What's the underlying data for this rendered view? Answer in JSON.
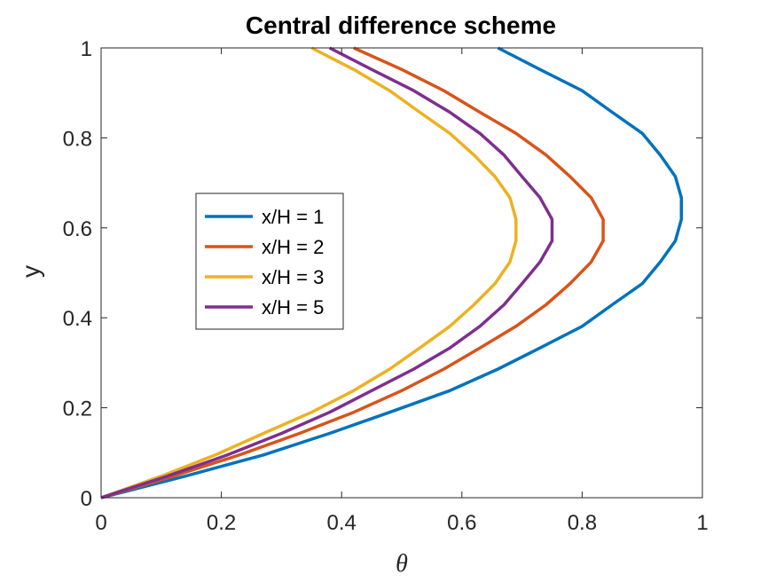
{
  "chart_data": {
    "type": "line",
    "title": "Central difference scheme",
    "xlabel": "θ",
    "ylabel": "y",
    "xlim": [
      0,
      1
    ],
    "ylim": [
      0,
      1
    ],
    "xticks": [
      0,
      0.2,
      0.4,
      0.6,
      0.8,
      1
    ],
    "yticks": [
      0,
      0.2,
      0.4,
      0.6,
      0.8,
      1
    ],
    "xtick_labels": [
      "0",
      "0.2",
      "0.4",
      "0.6",
      "0.8",
      "1"
    ],
    "ytick_labels": [
      "0",
      "0.2",
      "0.4",
      "0.6",
      "0.8",
      "1"
    ],
    "grid": false,
    "legend_position": "center-left",
    "series": [
      {
        "name": "x/H = 1",
        "color": "#0072BD",
        "points": [
          [
            0,
            0
          ],
          [
            0.14,
            0.048
          ],
          [
            0.27,
            0.095
          ],
          [
            0.38,
            0.143
          ],
          [
            0.48,
            0.19
          ],
          [
            0.58,
            0.238
          ],
          [
            0.66,
            0.286
          ],
          [
            0.73,
            0.333
          ],
          [
            0.8,
            0.381
          ],
          [
            0.85,
            0.429
          ],
          [
            0.9,
            0.476
          ],
          [
            0.93,
            0.524
          ],
          [
            0.955,
            0.571
          ],
          [
            0.965,
            0.619
          ],
          [
            0.965,
            0.667
          ],
          [
            0.955,
            0.714
          ],
          [
            0.93,
            0.762
          ],
          [
            0.9,
            0.81
          ],
          [
            0.85,
            0.857
          ],
          [
            0.8,
            0.905
          ],
          [
            0.73,
            0.952
          ],
          [
            0.66,
            1.0
          ]
        ]
      },
      {
        "name": "x/H = 2",
        "color": "#D95319",
        "points": [
          [
            0,
            0
          ],
          [
            0.12,
            0.048
          ],
          [
            0.23,
            0.095
          ],
          [
            0.33,
            0.143
          ],
          [
            0.42,
            0.19
          ],
          [
            0.5,
            0.238
          ],
          [
            0.57,
            0.286
          ],
          [
            0.63,
            0.333
          ],
          [
            0.69,
            0.381
          ],
          [
            0.74,
            0.429
          ],
          [
            0.78,
            0.476
          ],
          [
            0.815,
            0.524
          ],
          [
            0.835,
            0.571
          ],
          [
            0.835,
            0.619
          ],
          [
            0.815,
            0.667
          ],
          [
            0.78,
            0.714
          ],
          [
            0.74,
            0.762
          ],
          [
            0.69,
            0.81
          ],
          [
            0.63,
            0.857
          ],
          [
            0.57,
            0.905
          ],
          [
            0.5,
            0.952
          ],
          [
            0.42,
            1.0
          ]
        ]
      },
      {
        "name": "x/H = 3",
        "color": "#EDB120",
        "points": [
          [
            0,
            0
          ],
          [
            0.1,
            0.048
          ],
          [
            0.19,
            0.095
          ],
          [
            0.27,
            0.143
          ],
          [
            0.35,
            0.19
          ],
          [
            0.42,
            0.238
          ],
          [
            0.48,
            0.286
          ],
          [
            0.53,
            0.333
          ],
          [
            0.58,
            0.381
          ],
          [
            0.62,
            0.429
          ],
          [
            0.655,
            0.476
          ],
          [
            0.68,
            0.524
          ],
          [
            0.69,
            0.571
          ],
          [
            0.69,
            0.619
          ],
          [
            0.68,
            0.667
          ],
          [
            0.655,
            0.714
          ],
          [
            0.62,
            0.762
          ],
          [
            0.58,
            0.81
          ],
          [
            0.53,
            0.857
          ],
          [
            0.48,
            0.905
          ],
          [
            0.42,
            0.952
          ],
          [
            0.35,
            1.0
          ]
        ]
      },
      {
        "name": "x/H = 5",
        "color": "#7E2F8E",
        "points": [
          [
            0,
            0
          ],
          [
            0.11,
            0.048
          ],
          [
            0.21,
            0.095
          ],
          [
            0.3,
            0.143
          ],
          [
            0.38,
            0.19
          ],
          [
            0.45,
            0.238
          ],
          [
            0.52,
            0.286
          ],
          [
            0.58,
            0.333
          ],
          [
            0.63,
            0.381
          ],
          [
            0.67,
            0.429
          ],
          [
            0.7,
            0.476
          ],
          [
            0.73,
            0.524
          ],
          [
            0.75,
            0.571
          ],
          [
            0.75,
            0.619
          ],
          [
            0.73,
            0.667
          ],
          [
            0.7,
            0.714
          ],
          [
            0.67,
            0.762
          ],
          [
            0.63,
            0.81
          ],
          [
            0.58,
            0.857
          ],
          [
            0.52,
            0.905
          ],
          [
            0.45,
            0.952
          ],
          [
            0.38,
            1.0
          ]
        ]
      }
    ]
  }
}
